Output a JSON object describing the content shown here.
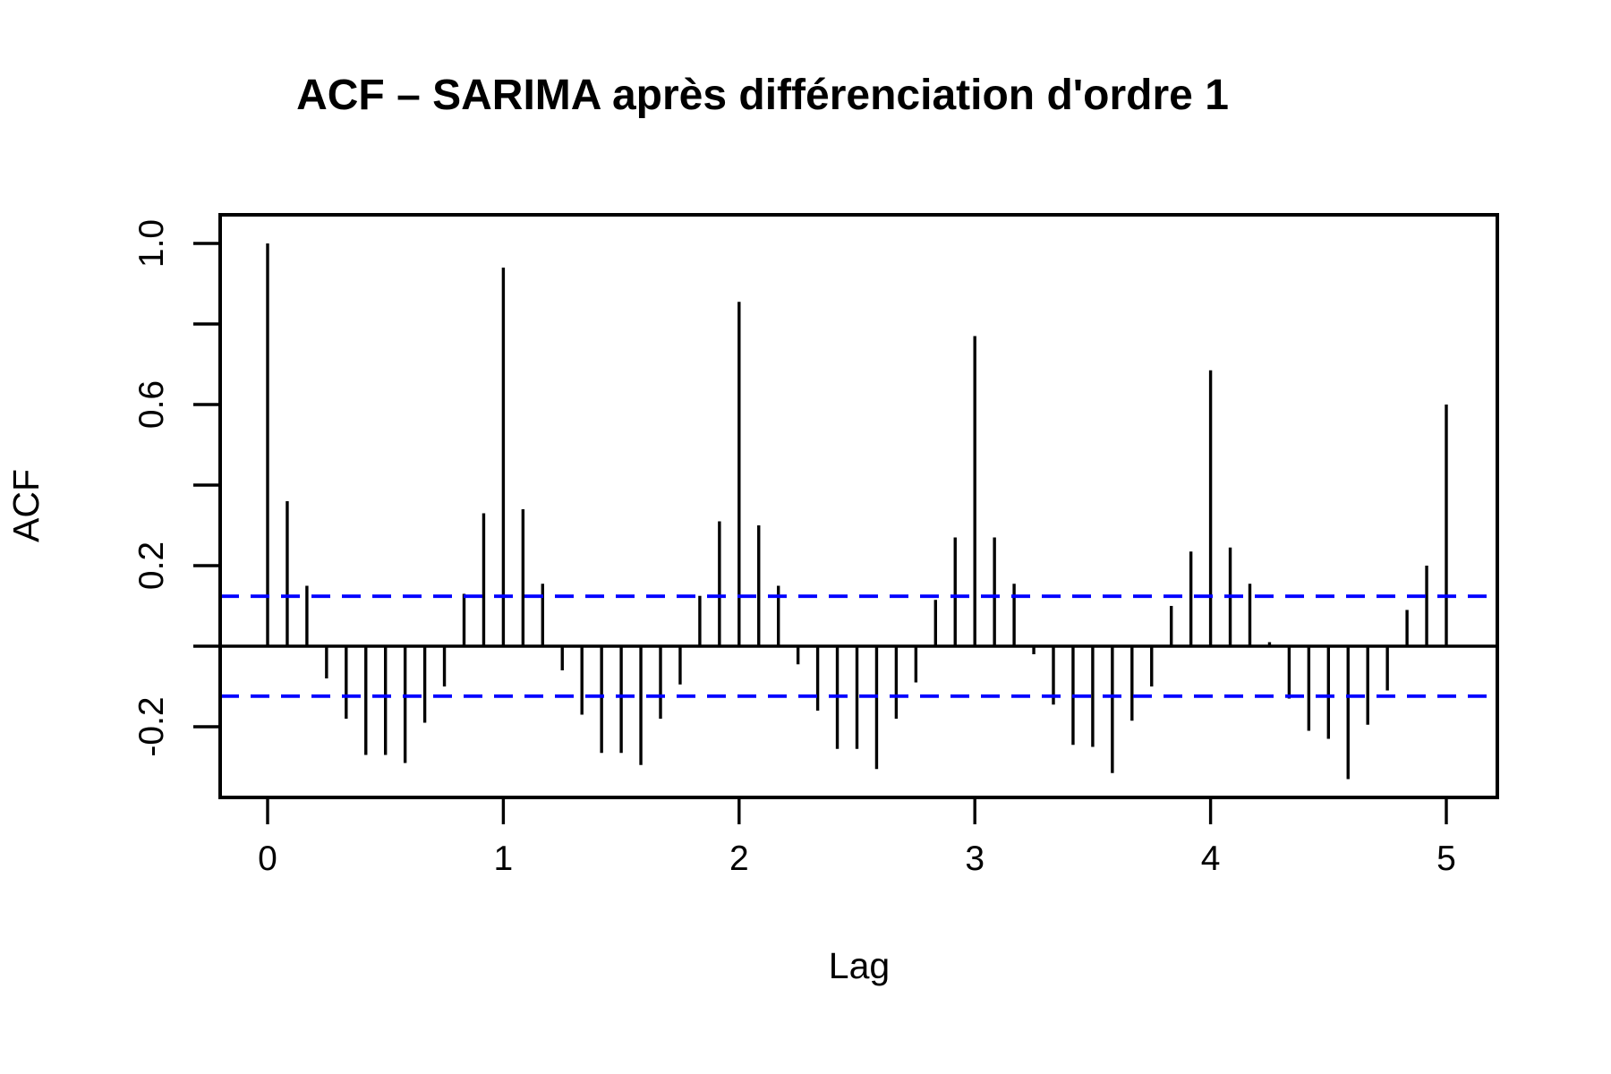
{
  "page": {
    "background": "#ffffff"
  },
  "chart_data": {
    "type": "bar",
    "variant": "acf-stem-plot",
    "title": "ACF – SARIMA après différenciation d'ordre 1",
    "xlabel": "Lag",
    "ylabel": "ACF",
    "x_unit": "years (12 monthly lags per unit)",
    "x_tick_labels": [
      "0",
      "1",
      "2",
      "3",
      "4",
      "5"
    ],
    "x_tick_values": [
      0,
      1,
      2,
      3,
      4,
      5
    ],
    "y_tick_values_all": [
      1.0,
      0.8,
      0.6,
      0.4,
      0.2,
      0.0,
      -0.2
    ],
    "y_tick_labels": [
      "1.0",
      "0.6",
      "0.2",
      "-0.2"
    ],
    "y_tick_values_labeled": [
      1.0,
      0.6,
      0.2,
      -0.2
    ],
    "xlim_years": [
      -0.198,
      5.224
    ],
    "ylim": [
      -0.376,
      1.071
    ],
    "grid": false,
    "zero_line": true,
    "confidence_bands": {
      "upper": 0.124,
      "lower": -0.124,
      "style": "dashed",
      "color": "#0000ff"
    },
    "colors": {
      "series": "#000000",
      "axis": "#000000",
      "band": "#0000ff"
    },
    "lags_months": [
      0,
      1,
      2,
      3,
      4,
      5,
      6,
      7,
      8,
      9,
      10,
      11,
      12,
      13,
      14,
      15,
      16,
      17,
      18,
      19,
      20,
      21,
      22,
      23,
      24,
      25,
      26,
      27,
      28,
      29,
      30,
      31,
      32,
      33,
      34,
      35,
      36,
      37,
      38,
      39,
      40,
      41,
      42,
      43,
      44,
      45,
      46,
      47,
      48,
      49,
      50,
      51,
      52,
      53,
      54,
      55,
      56,
      57,
      58,
      59,
      60
    ],
    "values": [
      1.0,
      0.36,
      0.15,
      -0.08,
      -0.18,
      -0.27,
      -0.27,
      -0.29,
      -0.19,
      -0.1,
      0.13,
      0.33,
      0.94,
      0.34,
      0.155,
      -0.06,
      -0.17,
      -0.265,
      -0.265,
      -0.295,
      -0.18,
      -0.095,
      0.125,
      0.31,
      0.855,
      0.3,
      0.15,
      -0.045,
      -0.16,
      -0.255,
      -0.255,
      -0.305,
      -0.18,
      -0.09,
      0.115,
      0.27,
      0.77,
      0.27,
      0.155,
      -0.02,
      -0.145,
      -0.245,
      -0.25,
      -0.315,
      -0.185,
      -0.1,
      0.1,
      0.235,
      0.685,
      0.245,
      0.155,
      0.01,
      -0.13,
      -0.21,
      -0.23,
      -0.33,
      -0.195,
      -0.11,
      0.09,
      0.2,
      0.6
    ]
  }
}
